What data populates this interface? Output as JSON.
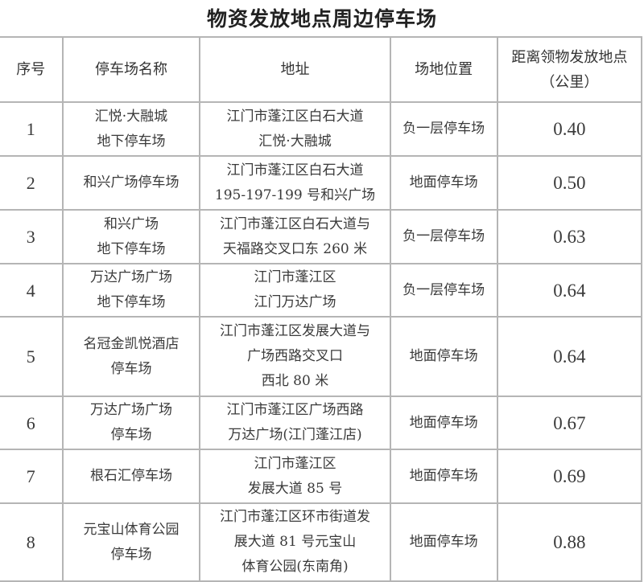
{
  "title": "物资发放地点周边停车场",
  "headers": [
    "序号",
    "停车场名称",
    "地址",
    "场地位置",
    "距离领物发放地点",
    "（公里）"
  ],
  "rows": [
    {
      "no": "1",
      "name": [
        "汇悦·大融城",
        "地下停车场"
      ],
      "address": [
        "江门市蓬江区白石大道",
        "汇悦·大融城"
      ],
      "location": "负一层停车场",
      "distance": "0.40"
    },
    {
      "no": "2",
      "name": [
        "和兴广场停车场"
      ],
      "address": [
        "江门市蓬江区白石大道",
        "195-197-199 号和兴广场"
      ],
      "location": "地面停车场",
      "distance": "0.50"
    },
    {
      "no": "3",
      "name": [
        "和兴广场",
        "地下停车场"
      ],
      "address": [
        "江门市蓬江区白石大道与",
        "天福路交叉口东 260 米"
      ],
      "location": "负一层停车场",
      "distance": "0.63"
    },
    {
      "no": "4",
      "name": [
        "万达广场广场",
        "地下停车场"
      ],
      "address": [
        "江门市蓬江区",
        "江门万达广场"
      ],
      "location": "负一层停车场",
      "distance": "0.64"
    },
    {
      "no": "5",
      "name": [
        "名冠金凯悦酒店",
        "停车场"
      ],
      "address": [
        "江门市蓬江区发展大道与",
        "广场西路交叉口",
        "西北 80 米"
      ],
      "location": "地面停车场",
      "distance": "0.64"
    },
    {
      "no": "6",
      "name": [
        "万达广场广场",
        "停车场"
      ],
      "address": [
        "江门市蓬江区广场西路",
        "万达广场(江门蓬江店)"
      ],
      "location": "地面停车场",
      "distance": "0.67"
    },
    {
      "no": "7",
      "name": [
        "根石汇停车场"
      ],
      "address": [
        "江门市蓬江区",
        "发展大道 85 号"
      ],
      "location": "地面停车场",
      "distance": "0.69"
    },
    {
      "no": "8",
      "name": [
        "元宝山体育公园",
        "停车场"
      ],
      "address": [
        "江门市蓬江区环市街道发",
        "展大道 81 号元宝山",
        "体育公园(东南角)"
      ],
      "location": "地面停车场",
      "distance": "0.88"
    }
  ]
}
